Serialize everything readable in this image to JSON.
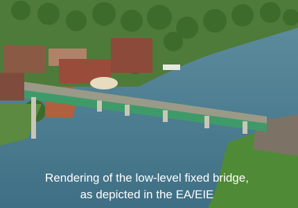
{
  "caption": {
    "lines": [
      "Rendering of the low-level fixed bridge,",
      "as depicted in the EA/EIE"
    ]
  }
}
